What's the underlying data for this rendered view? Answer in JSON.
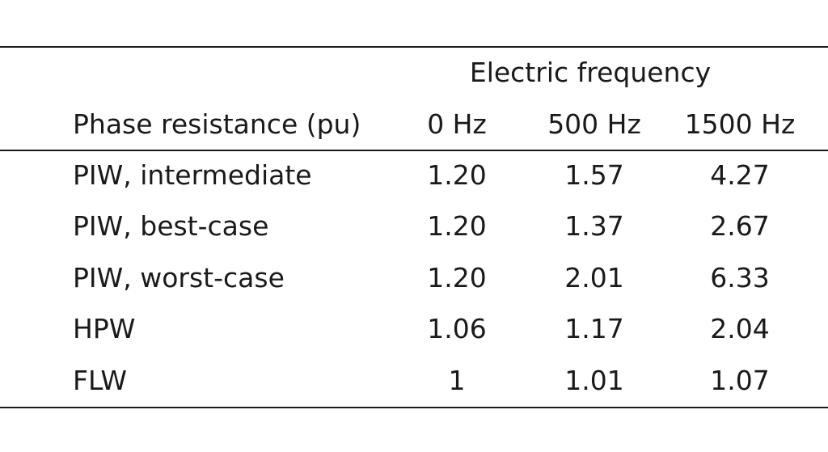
{
  "table": {
    "group_header": "Electric frequency",
    "row_header": "Phase resistance (pu)",
    "columns": [
      "0 Hz",
      "500 Hz",
      "1500 Hz"
    ],
    "rows": [
      {
        "label": "PIW, intermediate",
        "values": [
          "1.20",
          "1.57",
          "4.27"
        ]
      },
      {
        "label": "PIW, best-case",
        "values": [
          "1.20",
          "1.37",
          "2.67"
        ]
      },
      {
        "label": "PIW, worst-case",
        "values": [
          "1.20",
          "2.01",
          "6.33"
        ]
      },
      {
        "label": "HPW",
        "values": [
          "1.06",
          "1.17",
          "2.04"
        ]
      },
      {
        "label": "FLW",
        "values": [
          "1",
          "1.01",
          "1.07"
        ]
      }
    ]
  }
}
